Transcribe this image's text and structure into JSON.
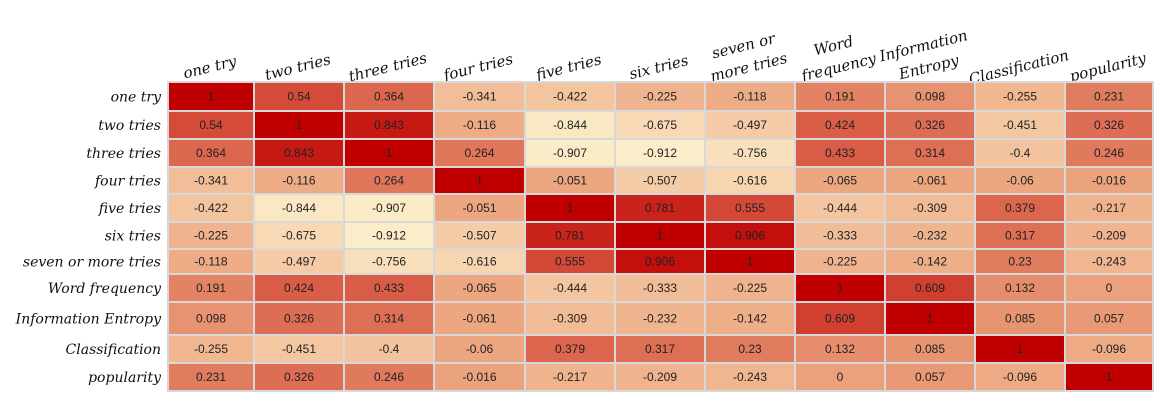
{
  "chart_data": {
    "type": "heatmap",
    "title": "",
    "x_labels": [
      "one try",
      "two tries",
      "three tries",
      "four tries",
      "five tries",
      "six tries",
      "seven or more tries",
      "Word frequency",
      "Information Entropy",
      "Classification",
      "popularity"
    ],
    "x_label_lines": [
      [
        "one try"
      ],
      [
        "two tries"
      ],
      [
        "three tries"
      ],
      [
        "four tries"
      ],
      [
        "five tries"
      ],
      [
        "six tries"
      ],
      [
        "seven or",
        "more tries"
      ],
      [
        "Word",
        "frequency"
      ],
      [
        "Information",
        "Entropy"
      ],
      [
        "Classification"
      ],
      [
        "popularity"
      ]
    ],
    "y_labels": [
      "one try",
      "two tries",
      "three tries",
      "four tries",
      "five tries",
      "six tries",
      "seven or more tries",
      "Word frequency",
      "Information Entropy",
      "Classification",
      "popularity"
    ],
    "values": [
      [
        "1",
        "0.54",
        "0.364",
        "-0.341",
        "-0.422",
        "-0.225",
        "-0.118",
        "0.191",
        "0.098",
        "-0.255",
        "0.231"
      ],
      [
        "0.54",
        "1",
        "0.843",
        "-0.116",
        "-0.844",
        "-0.675",
        "-0.497",
        "0.424",
        "0.326",
        "-0.451",
        "0.326"
      ],
      [
        "0.364",
        "0.843",
        "1",
        "0.264",
        "-0.907",
        "-0.912",
        "-0.756",
        "0.433",
        "0.314",
        "-0.4",
        "0.246"
      ],
      [
        "-0.341",
        "-0.116",
        "0.264",
        "1",
        "-0.051",
        "-0.507",
        "-0.616",
        "-0.065",
        "-0.061",
        "-0.06",
        "-0.016"
      ],
      [
        "-0.422",
        "-0.844",
        "-0.907",
        "-0.051",
        "1",
        "0.781",
        "0.555",
        "-0.444",
        "-0.309",
        "0.379",
        "-0.217"
      ],
      [
        "-0.225",
        "-0.675",
        "-0.912",
        "-0.507",
        "0.781",
        "1",
        "0.906",
        "-0.333",
        "-0.232",
        "0.317",
        "-0.209"
      ],
      [
        "-0.118",
        "-0.497",
        "-0.756",
        "-0.616",
        "0.555",
        "0.906",
        "1",
        "-0.225",
        "-0.142",
        "0.23",
        "-0.243"
      ],
      [
        "0.191",
        "0.424",
        "0.433",
        "-0.065",
        "-0.444",
        "-0.333",
        "-0.225",
        "1",
        "0.609",
        "0.132",
        "0"
      ],
      [
        "0.098",
        "0.326",
        "0.314",
        "-0.061",
        "-0.309",
        "-0.232",
        "-0.142",
        "0.609",
        "1",
        "0.085",
        "0.057"
      ],
      [
        "-0.255",
        "-0.451",
        "-0.4",
        "-0.06",
        "0.379",
        "0.317",
        "0.23",
        "0.132",
        "0.085",
        "1",
        "-0.096"
      ],
      [
        "0.231",
        "0.326",
        "0.246",
        "-0.016",
        "-0.217",
        "-0.209",
        "-0.243",
        "0",
        "0.057",
        "-0.096",
        "1"
      ]
    ],
    "value_range": [
      -1,
      1
    ],
    "colors": {
      "low": "#fdf4d0",
      "mid": "#eba27c",
      "high": "#c00000",
      "grid": "#d8d8d8"
    },
    "legend": "none"
  }
}
